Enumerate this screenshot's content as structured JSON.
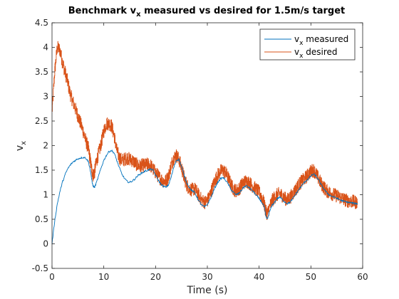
{
  "chart_data": {
    "type": "line",
    "title": {
      "prefix": "Benchmark v",
      "sub": "x",
      "suffix": " measured vs desired for 1.5m/s target"
    },
    "xlabel": "Time (s)",
    "ylabel": {
      "main": "v",
      "sub": "x"
    },
    "xlim": [
      0,
      60
    ],
    "ylim": [
      -0.5,
      4.5
    ],
    "xticks": [
      0,
      10,
      20,
      30,
      40,
      50,
      60
    ],
    "yticks": [
      -0.5,
      0,
      0.5,
      1,
      1.5,
      2,
      2.5,
      3,
      3.5,
      4,
      4.5
    ],
    "grid": false,
    "legend_position": "top-right",
    "series": [
      {
        "name": "v_x measured",
        "legend_main": "v",
        "legend_sub": "x",
        "legend_rest": " measured",
        "color": "#0072BD",
        "noise": 0.02,
        "x": [
          0,
          0.5,
          1,
          1.5,
          2,
          2.5,
          3,
          3.5,
          4,
          4.5,
          5,
          5.5,
          6,
          6.5,
          7,
          7.3,
          7.6,
          7.9,
          8.2,
          8.5,
          9,
          9.5,
          10,
          10.5,
          11,
          11.5,
          12,
          12.5,
          13,
          13.5,
          14,
          14.5,
          15,
          15.5,
          16,
          16.5,
          17,
          17.5,
          18,
          18.5,
          19,
          19.5,
          20,
          20.5,
          21,
          21.5,
          22,
          22.5,
          23,
          23.5,
          24,
          24.5,
          25,
          25.5,
          26,
          26.5,
          27,
          27.5,
          28,
          28.5,
          29,
          29.5,
          30,
          30.5,
          31,
          31.5,
          32,
          32.5,
          33,
          33.5,
          34,
          34.5,
          35,
          35.5,
          36,
          36.5,
          37,
          37.5,
          38,
          38.5,
          39,
          39.5,
          40,
          40.5,
          41,
          41.3,
          41.6,
          42,
          42.5,
          43,
          43.5,
          44,
          44.5,
          45,
          45.5,
          46,
          46.5,
          47,
          47.5,
          48,
          48.5,
          49,
          49.5,
          50,
          50.5,
          51,
          51.5,
          52,
          52.5,
          53,
          53.5,
          54,
          54.5,
          55,
          55.5,
          56,
          56.5,
          57,
          57.5,
          58,
          58.5,
          59
        ],
        "y": [
          0.0,
          0.45,
          0.8,
          1.05,
          1.25,
          1.4,
          1.52,
          1.6,
          1.66,
          1.7,
          1.73,
          1.75,
          1.76,
          1.75,
          1.68,
          1.55,
          1.35,
          1.18,
          1.15,
          1.22,
          1.38,
          1.55,
          1.7,
          1.8,
          1.88,
          1.9,
          1.85,
          1.7,
          1.55,
          1.42,
          1.33,
          1.27,
          1.25,
          1.28,
          1.32,
          1.38,
          1.42,
          1.45,
          1.48,
          1.5,
          1.52,
          1.5,
          1.4,
          1.3,
          1.22,
          1.17,
          1.15,
          1.2,
          1.35,
          1.55,
          1.7,
          1.72,
          1.58,
          1.4,
          1.25,
          1.15,
          1.08,
          1.05,
          0.95,
          0.85,
          0.78,
          0.75,
          0.8,
          0.9,
          1.02,
          1.15,
          1.25,
          1.32,
          1.35,
          1.3,
          1.22,
          1.12,
          1.05,
          1.0,
          1.02,
          1.08,
          1.15,
          1.18,
          1.15,
          1.1,
          1.05,
          0.98,
          0.92,
          0.85,
          0.75,
          0.55,
          0.5,
          0.65,
          0.78,
          0.85,
          0.92,
          0.95,
          0.9,
          0.85,
          0.82,
          0.85,
          0.92,
          1.0,
          1.08,
          1.15,
          1.22,
          1.28,
          1.32,
          1.38,
          1.42,
          1.38,
          1.3,
          1.2,
          1.12,
          1.05,
          1.0,
          0.97,
          0.95,
          0.93,
          0.9,
          0.88,
          0.86,
          0.85,
          0.84,
          0.83,
          0.82,
          0.82
        ]
      },
      {
        "name": "v_x desired",
        "legend_main": "v",
        "legend_sub": "x",
        "legend_rest": " desired",
        "color": "#D95319",
        "noise": 0.14,
        "x": [
          0,
          0.5,
          1,
          1.5,
          2,
          2.5,
          3,
          3.5,
          4,
          4.5,
          5,
          5.5,
          6,
          6.5,
          7,
          7.3,
          7.6,
          7.9,
          8.2,
          8.5,
          9,
          9.5,
          10,
          10.5,
          11,
          11.5,
          12,
          12.5,
          13,
          13.5,
          14,
          14.5,
          15,
          15.5,
          16,
          16.5,
          17,
          17.5,
          18,
          18.5,
          19,
          19.5,
          20,
          20.5,
          21,
          21.5,
          22,
          22.5,
          23,
          23.5,
          24,
          24.5,
          25,
          25.5,
          26,
          26.5,
          27,
          27.5,
          28,
          28.5,
          29,
          29.5,
          30,
          30.5,
          31,
          31.5,
          32,
          32.5,
          33,
          33.5,
          34,
          34.5,
          35,
          35.5,
          36,
          36.5,
          37,
          37.5,
          38,
          38.5,
          39,
          39.5,
          40,
          40.5,
          41,
          41.3,
          41.6,
          42,
          42.5,
          43,
          43.5,
          44,
          44.5,
          45,
          45.5,
          46,
          46.5,
          47,
          47.5,
          48,
          48.5,
          49,
          49.5,
          50,
          50.5,
          51,
          51.5,
          52,
          52.5,
          53,
          53.5,
          54,
          54.5,
          55,
          55.5,
          56,
          56.5,
          57,
          57.5,
          58,
          58.5,
          59
        ],
        "y": [
          2.7,
          3.5,
          4.0,
          3.95,
          3.7,
          3.5,
          3.3,
          3.05,
          2.9,
          2.75,
          2.6,
          2.45,
          2.3,
          2.1,
          1.95,
          1.75,
          1.55,
          1.4,
          1.45,
          1.65,
          1.85,
          2.05,
          2.3,
          2.45,
          2.45,
          2.4,
          2.2,
          1.9,
          1.75,
          1.7,
          1.72,
          1.75,
          1.72,
          1.7,
          1.65,
          1.6,
          1.58,
          1.6,
          1.6,
          1.62,
          1.6,
          1.52,
          1.45,
          1.38,
          1.32,
          1.28,
          1.28,
          1.38,
          1.6,
          1.75,
          1.8,
          1.72,
          1.55,
          1.35,
          1.2,
          1.12,
          1.1,
          1.12,
          1.05,
          0.95,
          0.88,
          0.85,
          0.88,
          1.0,
          1.15,
          1.3,
          1.4,
          1.48,
          1.5,
          1.45,
          1.35,
          1.22,
          1.12,
          1.08,
          1.1,
          1.18,
          1.25,
          1.28,
          1.25,
          1.2,
          1.15,
          1.1,
          1.05,
          0.95,
          0.8,
          0.65,
          0.62,
          0.75,
          0.88,
          0.95,
          1.0,
          1.02,
          0.98,
          0.92,
          0.9,
          0.95,
          1.02,
          1.1,
          1.18,
          1.25,
          1.3,
          1.35,
          1.42,
          1.48,
          1.5,
          1.42,
          1.32,
          1.22,
          1.15,
          1.08,
          1.05,
          1.02,
          1.0,
          0.98,
          0.95,
          0.93,
          0.9,
          0.88,
          0.87,
          0.86,
          0.85,
          0.84
        ]
      }
    ]
  }
}
